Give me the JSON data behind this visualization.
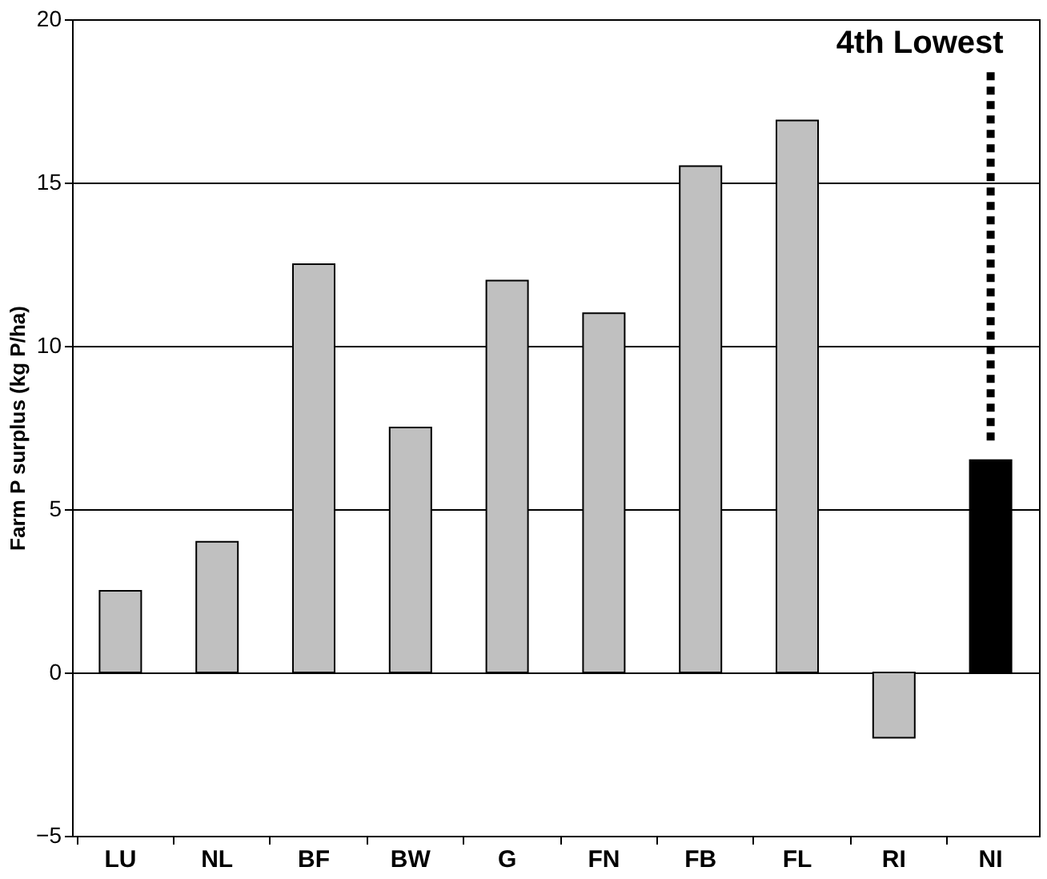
{
  "chart_data": {
    "type": "bar",
    "ylabel": "Farm P surplus (kg P/ha)",
    "categories": [
      "LU",
      "NL",
      "BF",
      "BW",
      "G",
      "FN",
      "FB",
      "FL",
      "RI",
      "NI"
    ],
    "values": [
      2.5,
      4.0,
      12.5,
      7.5,
      12.0,
      11.0,
      15.5,
      16.9,
      -2.0,
      6.5
    ],
    "colors": [
      "#c0c0c0",
      "#c0c0c0",
      "#c0c0c0",
      "#c0c0c0",
      "#c0c0c0",
      "#c0c0c0",
      "#c0c0c0",
      "#c0c0c0",
      "#c0c0c0",
      "#000000"
    ],
    "ylim": [
      -5,
      20
    ],
    "yticks": [
      -5,
      0,
      5,
      10,
      15,
      20
    ],
    "grid": "y",
    "annotations": [
      "4th Lowest"
    ]
  }
}
